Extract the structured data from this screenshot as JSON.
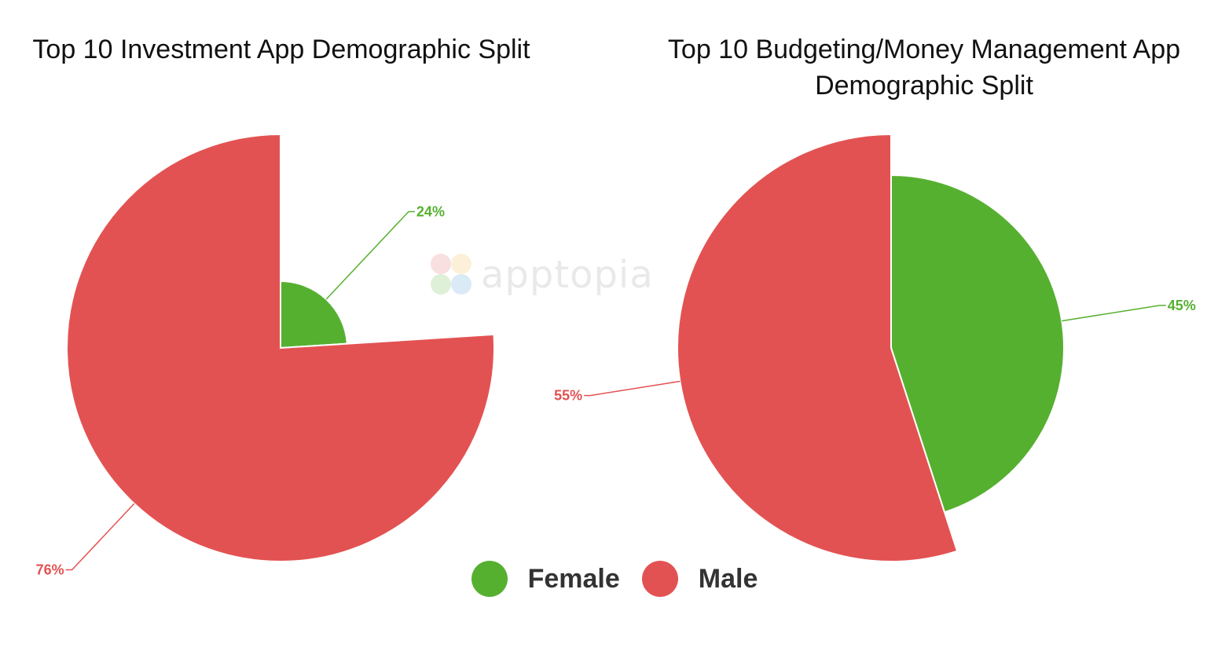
{
  "colors": {
    "female": "#56b030",
    "male": "#e35252",
    "line_female": "#56b030",
    "line_male": "#e35252"
  },
  "watermark": {
    "text": "apptopia",
    "icon": "apptopia-logo-icon"
  },
  "legend": [
    {
      "name": "Female",
      "color": "#56b030"
    },
    {
      "name": "Male",
      "color": "#e35252"
    }
  ],
  "chart_data": [
    {
      "type": "pie",
      "variant": "rose",
      "title": "Top 10 Investment App Demographic Split",
      "categories": [
        "Female",
        "Male"
      ],
      "values": [
        24,
        76
      ],
      "labels": [
        "24%",
        "76%"
      ],
      "colors": [
        "#56b030",
        "#e35252"
      ],
      "legend": "bottom"
    },
    {
      "type": "pie",
      "variant": "rose",
      "title": "Top 10 Budgeting/Money Management App Demographic Split",
      "categories": [
        "Female",
        "Male"
      ],
      "values": [
        45,
        55
      ],
      "labels": [
        "45%",
        "55%"
      ],
      "colors": [
        "#56b030",
        "#e35252"
      ],
      "legend": "bottom"
    }
  ]
}
